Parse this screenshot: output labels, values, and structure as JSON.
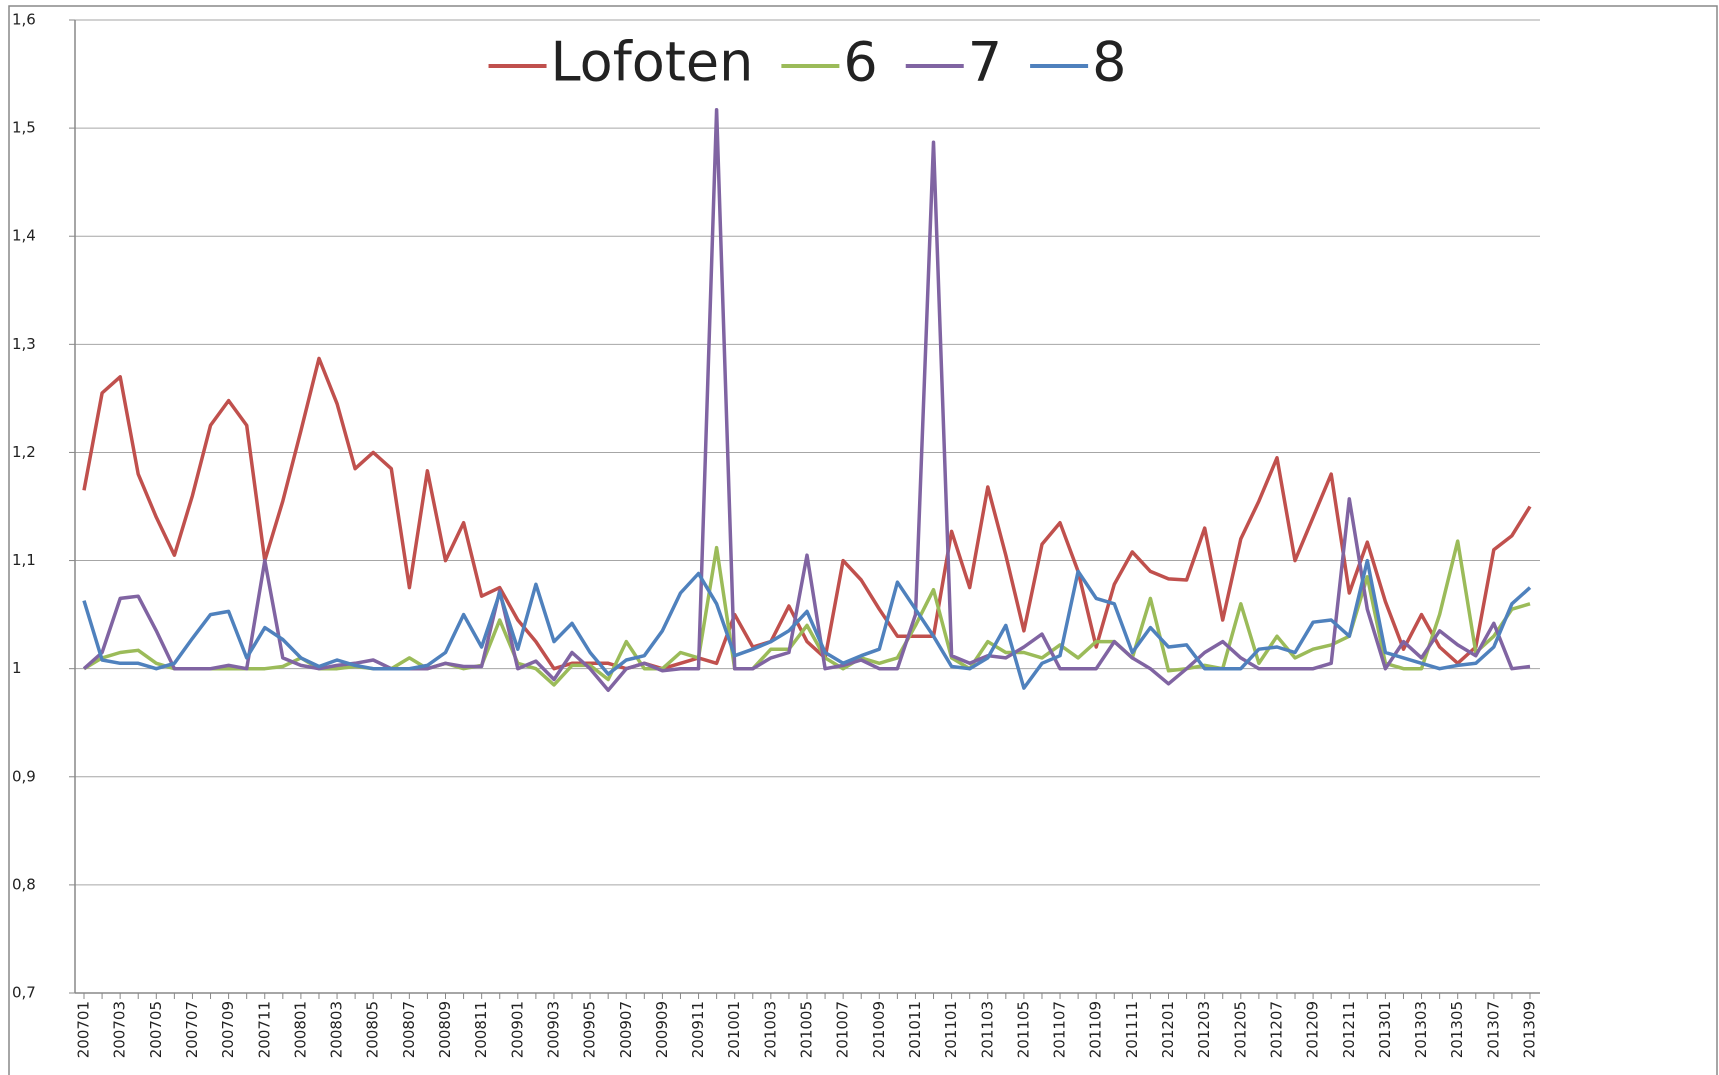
{
  "chart_data": {
    "type": "line",
    "categories": [
      "200701",
      null,
      "200703",
      null,
      "200705",
      null,
      "200707",
      null,
      "200709",
      null,
      "200711",
      null,
      "200801",
      null,
      "200803",
      null,
      "200805",
      null,
      "200807",
      null,
      "200809",
      null,
      "200811",
      null,
      "200901",
      null,
      "200903",
      null,
      "200905",
      null,
      "200907",
      null,
      "200909",
      null,
      "200911",
      null,
      "201001",
      null,
      "201003",
      null,
      "201005",
      null,
      "201007",
      null,
      "201009",
      null,
      "201011",
      null,
      "201101",
      null,
      "201103",
      null,
      "201105",
      null,
      "201107",
      null,
      "201109",
      null,
      "201111",
      null,
      "201201",
      null,
      "201203",
      null,
      "201205",
      null,
      "201207",
      null,
      "201209",
      null,
      "201211",
      null,
      "201301",
      null,
      "201303",
      null,
      "201305",
      null,
      "201307",
      null,
      "201309"
    ],
    "series": [
      {
        "name": "Lofoten",
        "color": "#c0504d",
        "values": [
          1.165,
          1.255,
          1.27,
          1.18,
          1.14,
          1.105,
          1.16,
          1.225,
          1.248,
          1.225,
          1.1,
          1.155,
          1.22,
          1.287,
          1.245,
          1.185,
          1.2,
          1.185,
          1.075,
          1.183,
          1.1,
          1.135,
          1.067,
          1.075,
          1.045,
          1.025,
          1.0,
          1.005,
          1.005,
          1.005,
          1.0,
          1.005,
          1.0,
          1.005,
          1.01,
          1.005,
          1.05,
          1.02,
          1.025,
          1.058,
          1.025,
          1.01,
          1.1,
          1.082,
          1.055,
          1.03,
          1.03,
          1.03,
          1.127,
          1.075,
          1.168,
          1.105,
          1.035,
          1.115,
          1.135,
          1.09,
          1.02,
          1.078,
          1.108,
          1.09,
          1.083,
          1.082,
          1.13,
          1.045,
          1.12,
          1.155,
          1.195,
          1.1,
          1.14,
          1.18,
          1.07,
          1.117,
          1.062,
          1.018,
          1.05,
          1.02,
          1.005,
          1.02,
          1.11,
          1.123,
          1.15
        ]
      },
      {
        "name": "6",
        "color": "#9bbb59",
        "values": [
          1.0,
          1.01,
          1.015,
          1.017,
          1.005,
          1.0,
          1.0,
          1.0,
          1.0,
          1.0,
          1.0,
          1.002,
          1.01,
          1.0,
          1.0,
          1.002,
          1.0,
          1.0,
          1.01,
          1.0,
          1.005,
          1.0,
          1.003,
          1.045,
          1.005,
          1.0,
          0.985,
          1.003,
          1.003,
          0.99,
          1.025,
          1.0,
          1.0,
          1.015,
          1.01,
          1.112,
          1.0,
          1.0,
          1.018,
          1.018,
          1.04,
          1.01,
          1.0,
          1.01,
          1.005,
          1.01,
          1.04,
          1.073,
          1.01,
          1.0,
          1.025,
          1.015,
          1.015,
          1.01,
          1.022,
          1.01,
          1.025,
          1.025,
          1.01,
          1.065,
          0.998,
          1.0,
          1.003,
          1.0,
          1.06,
          1.005,
          1.03,
          1.01,
          1.018,
          1.022,
          1.03,
          1.085,
          1.005,
          1.0,
          1.0,
          1.05,
          1.118,
          1.015,
          1.03,
          1.055,
          1.06
        ]
      },
      {
        "name": "7",
        "color": "#8064a2",
        "values": [
          1.0,
          1.015,
          1.065,
          1.067,
          1.035,
          1.0,
          1.0,
          1.0,
          1.003,
          1.0,
          1.1,
          1.01,
          1.003,
          1.0,
          1.003,
          1.005,
          1.008,
          1.0,
          1.0,
          1.0,
          1.005,
          1.002,
          1.002,
          1.072,
          1.0,
          1.007,
          0.99,
          1.015,
          1.0,
          0.98,
          1.0,
          1.005,
          0.998,
          1.0,
          1.0,
          1.517,
          1.0,
          1.0,
          1.01,
          1.015,
          1.105,
          1.0,
          1.003,
          1.008,
          1.0,
          1.0,
          1.05,
          1.487,
          1.012,
          1.005,
          1.012,
          1.01,
          1.02,
          1.032,
          1.0,
          1.0,
          1.0,
          1.025,
          1.01,
          1.0,
          0.986,
          1.0,
          1.015,
          1.025,
          1.01,
          1.0,
          1.0,
          1.0,
          1.0,
          1.005,
          1.157,
          1.055,
          1.0,
          1.025,
          1.01,
          1.035,
          1.022,
          1.012,
          1.042,
          1.0,
          1.002
        ]
      },
      {
        "name": "8",
        "color": "#4f81bd",
        "values": [
          1.063,
          1.008,
          1.005,
          1.005,
          1.0,
          1.005,
          1.028,
          1.05,
          1.053,
          1.01,
          1.038,
          1.027,
          1.01,
          1.002,
          1.008,
          1.003,
          1.0,
          1.0,
          1.0,
          1.003,
          1.015,
          1.05,
          1.02,
          1.07,
          1.018,
          1.078,
          1.025,
          1.042,
          1.015,
          0.995,
          1.008,
          1.012,
          1.035,
          1.07,
          1.088,
          1.06,
          1.012,
          1.018,
          1.025,
          1.035,
          1.053,
          1.015,
          1.005,
          1.012,
          1.018,
          1.08,
          1.055,
          1.03,
          1.002,
          1.0,
          1.01,
          1.04,
          0.982,
          1.005,
          1.012,
          1.09,
          1.065,
          1.06,
          1.015,
          1.038,
          1.02,
          1.022,
          1.0,
          1.0,
          1.0,
          1.018,
          1.02,
          1.015,
          1.043,
          1.045,
          1.03,
          1.1,
          1.015,
          1.01,
          1.005,
          1.0,
          1.003,
          1.005,
          1.02,
          1.06,
          1.075
        ]
      }
    ],
    "ylim": [
      0.7,
      1.6
    ],
    "yticks": [
      {
        "value": 0.7,
        "label": "0,7"
      },
      {
        "value": 0.8,
        "label": "0,8"
      },
      {
        "value": 0.9,
        "label": "0,9"
      },
      1,
      {
        "value": 1.1,
        "label": "1,1"
      },
      {
        "value": 1.2,
        "label": "1,2"
      },
      {
        "value": 1.3,
        "label": "1,3"
      },
      {
        "value": 1.4,
        "label": "1,4"
      },
      {
        "value": 1.5,
        "label": "1,5"
      },
      {
        "value": 1.6,
        "label": "1,6"
      }
    ],
    "grid": true,
    "legend": "top"
  }
}
